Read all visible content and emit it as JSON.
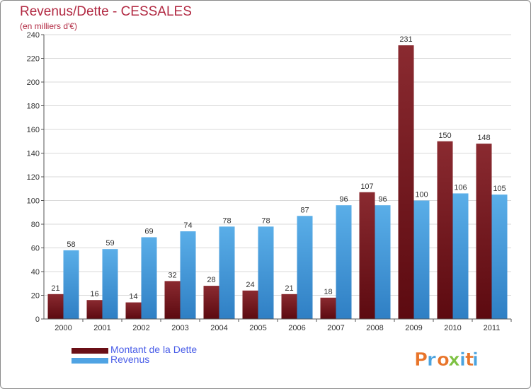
{
  "chart_data": {
    "type": "bar",
    "title": "Revenus/Dette - CESSALES",
    "subtitle": "(en milliers d'€)",
    "categories": [
      "2000",
      "2001",
      "2002",
      "2003",
      "2004",
      "2005",
      "2006",
      "2007",
      "2008",
      "2009",
      "2010",
      "2011"
    ],
    "series": [
      {
        "name": "Montant de la Dette",
        "color": "#7a1a22",
        "values": [
          21,
          16,
          14,
          32,
          28,
          24,
          21,
          18,
          107,
          231,
          150,
          148
        ]
      },
      {
        "name": "Revenus",
        "color": "#4fa3e3",
        "values": [
          58,
          59,
          69,
          74,
          78,
          78,
          87,
          96,
          96,
          100,
          106,
          105
        ]
      }
    ],
    "ylim": [
      0,
      240
    ],
    "yticks": [
      0,
      20,
      40,
      60,
      80,
      100,
      120,
      140,
      160,
      180,
      200,
      220,
      240
    ],
    "grid": true,
    "legend_position": "bottom-left"
  },
  "watermark": {
    "text": "Proxiti",
    "letter_colors": [
      "#e8742a",
      "#4aa3df",
      "#e8742a",
      "#7dc142",
      "#4aa3df",
      "#e8742a",
      "#4aa3df"
    ]
  }
}
